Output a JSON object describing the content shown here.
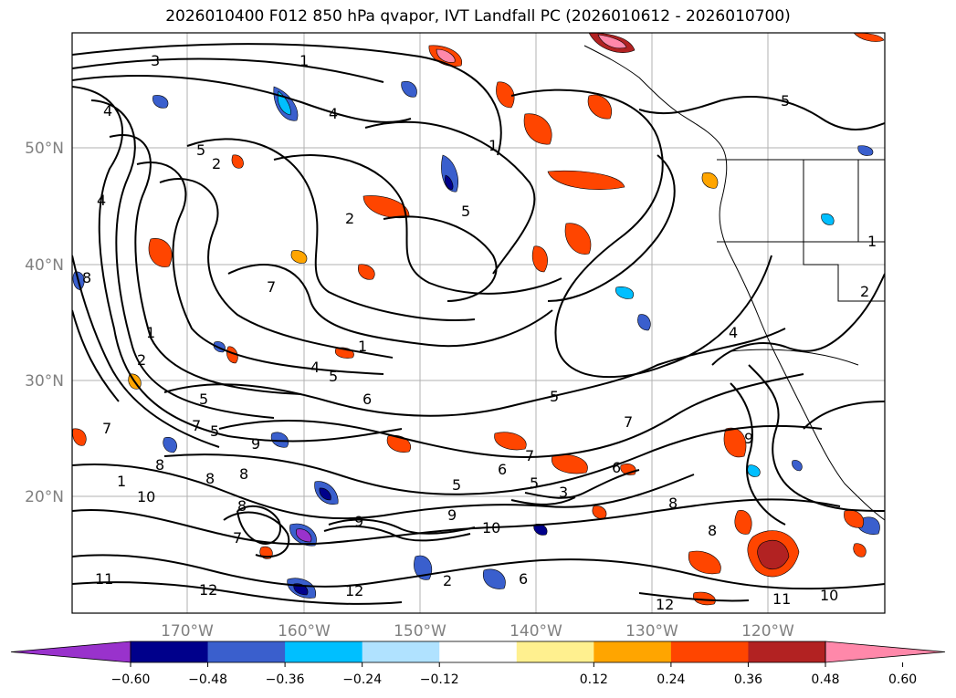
{
  "title": "2026010400 F012 850 hPa qvapor, IVT Landfall PC (2026010612 - 2026010700)",
  "lat_labels": [
    "50°N",
    "40°N",
    "30°N",
    "20°N"
  ],
  "lon_labels": [
    "170°W",
    "160°W",
    "150°W",
    "140°W",
    "130°W",
    "120°W"
  ],
  "colorbar": {
    "tick_labels": [
      "−0.60",
      "−0.48",
      "−0.36",
      "−0.24",
      "−0.12",
      "0.12",
      "0.24",
      "0.36",
      "0.48",
      "0.60"
    ],
    "colors": [
      "#9932cc",
      "#00008b",
      "#3a5fcd",
      "#00bfff",
      "#b0e2ff",
      "#ffffff",
      "#fff08f",
      "#ffa500",
      "#ff4500",
      "#b22222",
      "#ff88aa"
    ]
  },
  "contour_labels": [
    "3",
    "1",
    "4",
    "5",
    "2",
    "4",
    "1",
    "5",
    "4",
    "5",
    "2",
    "7",
    "8",
    "1",
    "2",
    "1",
    "4",
    "5",
    "6",
    "5",
    "7",
    "5",
    "9",
    "7",
    "8",
    "1",
    "10",
    "8",
    "8",
    "7",
    "8",
    "9",
    "9",
    "10",
    "12",
    "11",
    "12",
    "2",
    "5",
    "6",
    "7",
    "5",
    "5",
    "6",
    "7",
    "8",
    "9",
    "8",
    "6",
    "4",
    "12",
    "10",
    "11",
    "1",
    "2",
    "3"
  ]
}
